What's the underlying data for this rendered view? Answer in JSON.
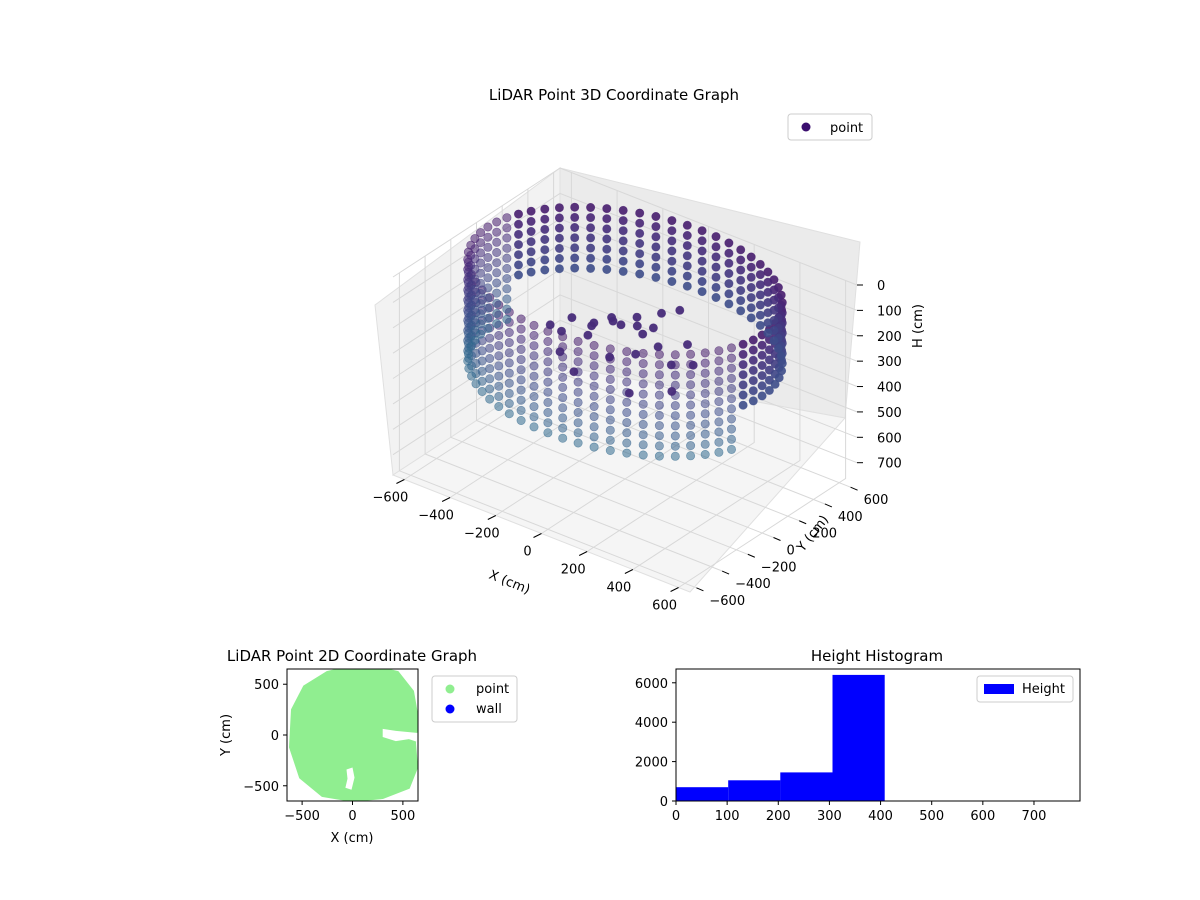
{
  "chart_data": [
    {
      "type": "scatter",
      "projection": "3d",
      "title": "LiDAR Point 3D Coordinate Graph",
      "xlabel": "X (cm)",
      "ylabel": "Y (cm)",
      "zlabel": "H (cm)",
      "xlim": [
        -650,
        650
      ],
      "ylim": [
        -650,
        650
      ],
      "zlim": [
        0,
        780
      ],
      "z_inverted": true,
      "xticks": [
        "−600",
        "−400",
        "−200",
        "0",
        "200",
        "400",
        "600"
      ],
      "yticks": [
        "−600",
        "−400",
        "−200",
        "0",
        "200",
        "400",
        "600"
      ],
      "zticks": [
        "0",
        "100",
        "200",
        "300",
        "400",
        "500",
        "600",
        "700"
      ],
      "grid": true,
      "legend": {
        "position": "top-right",
        "entries": [
          {
            "label": "point",
            "color": "#3b0f6f"
          }
        ]
      },
      "colormap": "viridis",
      "wall": {
        "radius_cm": 600,
        "height_range_cm": [
          0,
          400
        ],
        "columns": 60,
        "levels": 11
      },
      "clutter": [
        [
          -180,
          60,
          260
        ],
        [
          -120,
          120,
          240
        ],
        [
          -60,
          200,
          230
        ],
        [
          40,
          150,
          220
        ],
        [
          100,
          80,
          250
        ],
        [
          -250,
          -50,
          270
        ],
        [
          -200,
          -150,
          300
        ],
        [
          -100,
          -220,
          320
        ],
        [
          0,
          -120,
          260
        ],
        [
          80,
          -60,
          240
        ],
        [
          -300,
          120,
          290
        ],
        [
          -350,
          40,
          310
        ],
        [
          150,
          220,
          270
        ],
        [
          220,
          140,
          300
        ],
        [
          -40,
          40,
          200
        ],
        [
          -140,
          -40,
          250
        ],
        [
          20,
          60,
          190
        ],
        [
          -80,
          280,
          330
        ],
        [
          120,
          -180,
          340
        ],
        [
          -260,
          220,
          330
        ],
        [
          -20,
          320,
          240
        ],
        [
          60,
          320,
          200
        ],
        [
          -160,
          180,
          260
        ],
        [
          180,
          40,
          280
        ],
        [
          250,
          -80,
          320
        ]
      ]
    },
    {
      "type": "scatter",
      "title": "LiDAR Point 2D Coordinate Graph",
      "xlabel": "X (cm)",
      "ylabel": "Y (cm)",
      "xlim": [
        -650,
        650
      ],
      "ylim": [
        -650,
        650
      ],
      "xticks": [
        "−500",
        "0",
        "500"
      ],
      "yticks": [
        "−500",
        "0",
        "500"
      ],
      "legend": {
        "position": "outside-right",
        "entries": [
          {
            "label": "point",
            "color": "#90ee90"
          },
          {
            "label": "wall",
            "color": "#0000ff"
          }
        ]
      },
      "point_cloud_outline": [
        [
          -250,
          620
        ],
        [
          100,
          700
        ],
        [
          450,
          620
        ],
        [
          600,
          430
        ],
        [
          650,
          150
        ],
        [
          620,
          -80
        ],
        [
          640,
          -320
        ],
        [
          560,
          -520
        ],
        [
          300,
          -620
        ],
        [
          0,
          -650
        ],
        [
          -300,
          -600
        ],
        [
          -520,
          -420
        ],
        [
          -620,
          -120
        ],
        [
          -600,
          250
        ],
        [
          -480,
          480
        ]
      ],
      "gaps": [
        {
          "type": "notch",
          "points": [
            [
              300,
              60
            ],
            [
              430,
              40
            ],
            [
              650,
              20
            ],
            [
              650,
              -70
            ],
            [
              560,
              -40
            ],
            [
              430,
              -60
            ],
            [
              300,
              -20
            ]
          ]
        },
        {
          "type": "hole",
          "points": [
            [
              -60,
              -340
            ],
            [
              0,
              -320
            ],
            [
              20,
              -420
            ],
            [
              -10,
              -540
            ],
            [
              -70,
              -520
            ],
            [
              -50,
              -430
            ]
          ]
        }
      ]
    },
    {
      "type": "bar",
      "subtype": "histogram",
      "title": "Height Histogram",
      "xlim": [
        0,
        790
      ],
      "ylim": [
        0,
        6700
      ],
      "xticks": [
        "0",
        "100",
        "200",
        "300",
        "400",
        "500",
        "600",
        "700"
      ],
      "yticks": [
        "0",
        "2000",
        "4000",
        "6000"
      ],
      "legend": {
        "position": "top-right",
        "entries": [
          {
            "label": "Height",
            "color": "#0000ff"
          }
        ]
      },
      "bins": [
        {
          "x0": 0,
          "x1": 102,
          "count": 700
        },
        {
          "x0": 102,
          "x1": 204,
          "count": 1050
        },
        {
          "x0": 204,
          "x1": 306,
          "count": 1450
        },
        {
          "x0": 306,
          "x1": 408,
          "count": 6400
        }
      ]
    }
  ]
}
